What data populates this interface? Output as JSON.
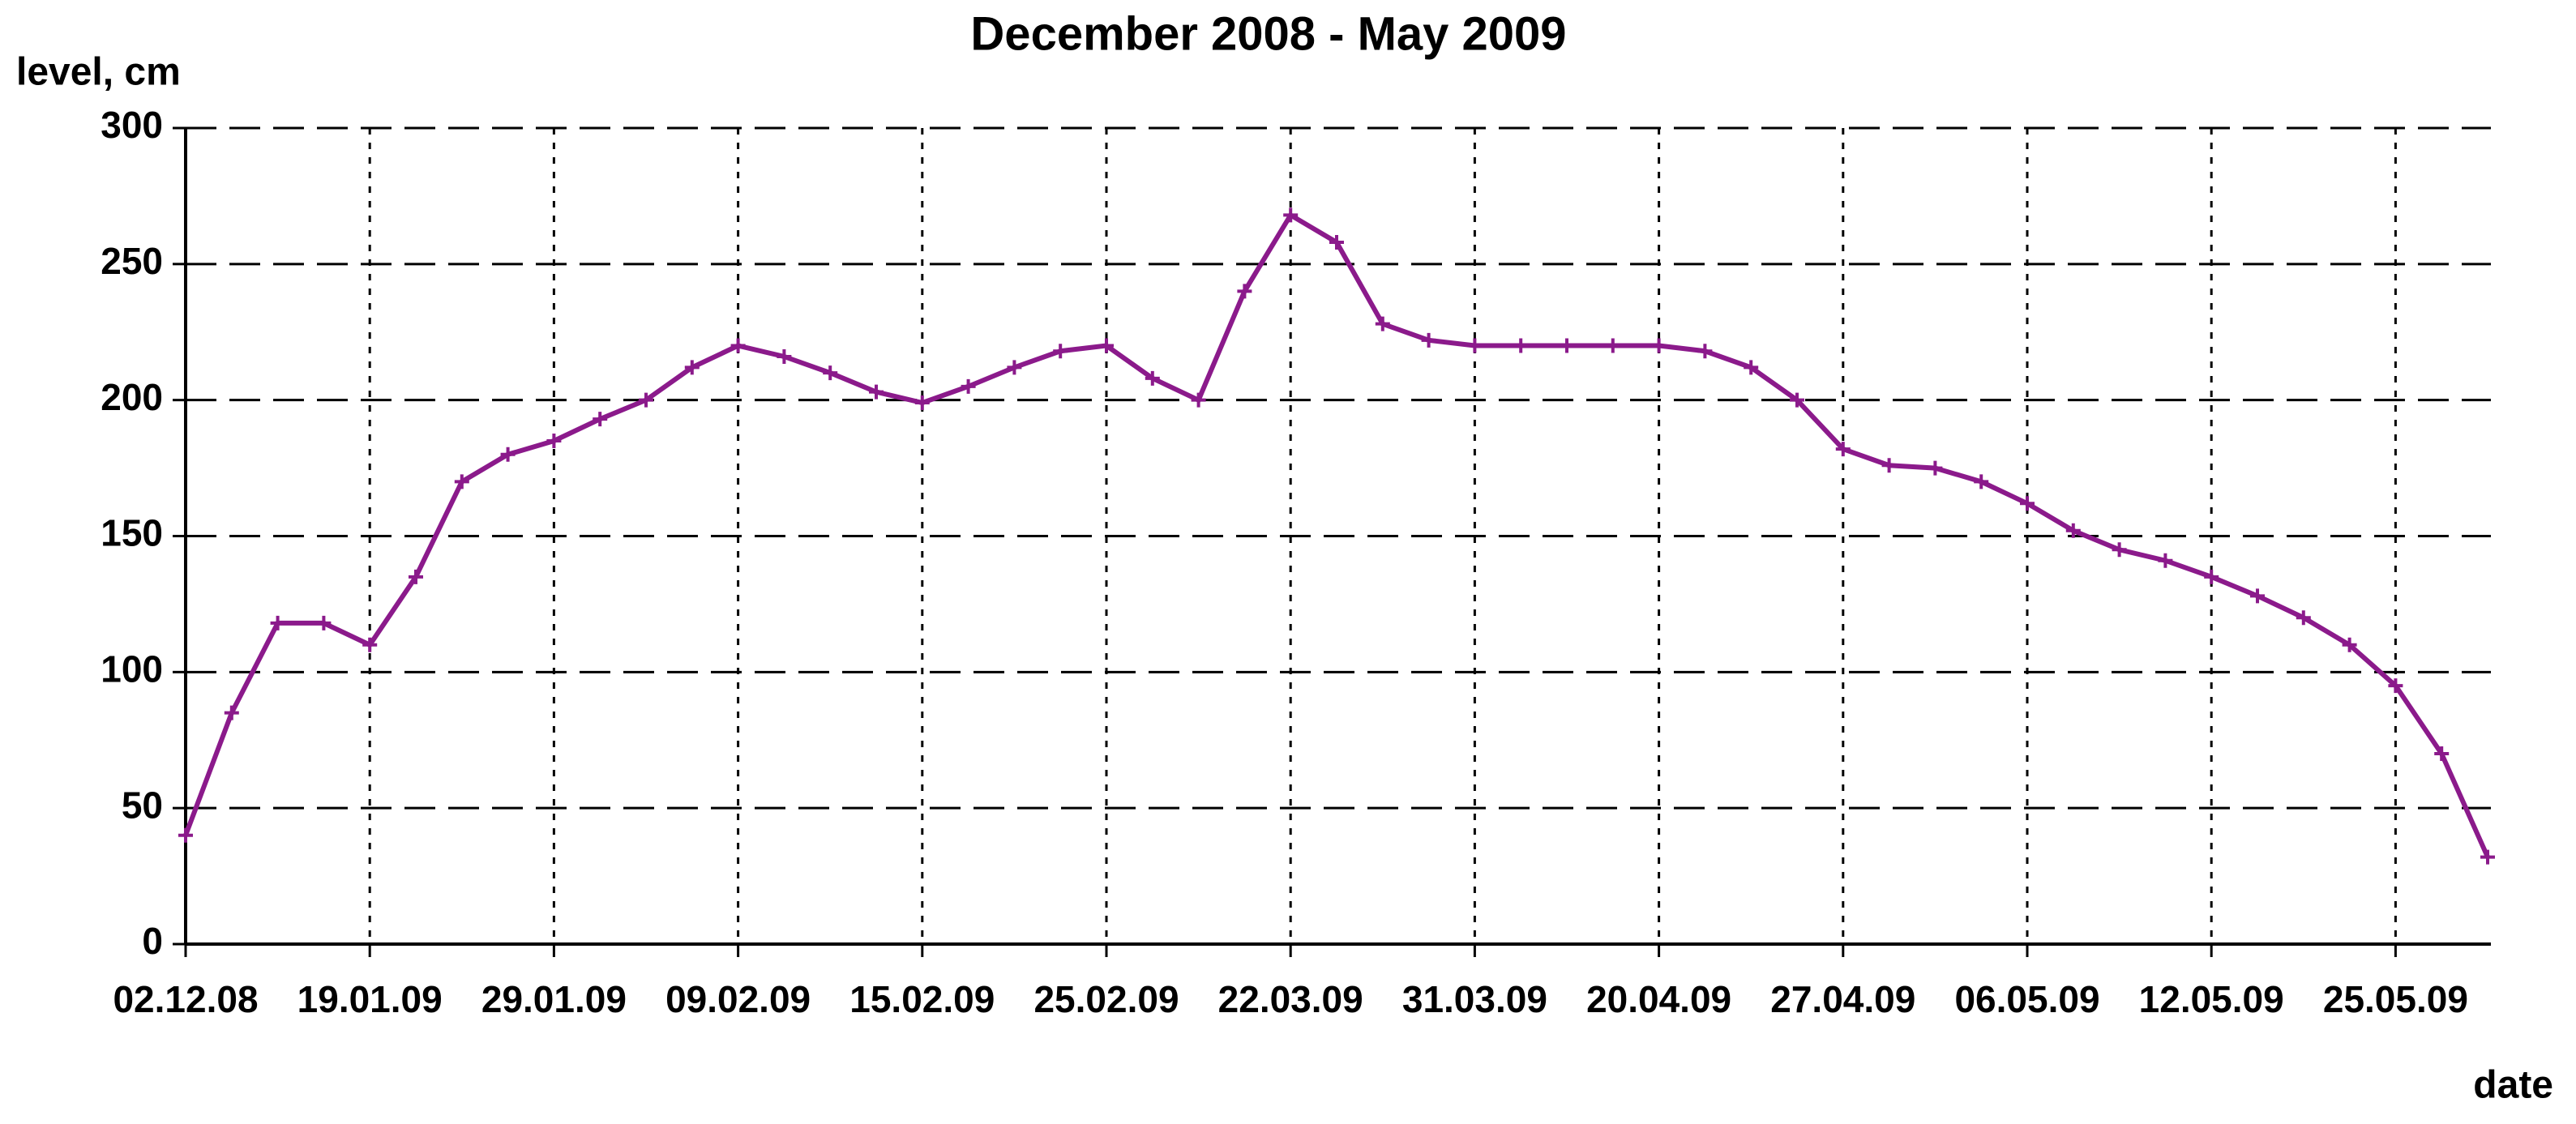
{
  "chart_data": {
    "type": "line",
    "title": "December 2008 - May 2009",
    "y_label": "level, cm",
    "x_label": "date",
    "categories": [
      "02.12.08",
      null,
      null,
      null,
      "19.01.09",
      null,
      null,
      null,
      "29.01.09",
      null,
      null,
      null,
      "09.02.09",
      null,
      null,
      null,
      "15.02.09",
      null,
      null,
      null,
      "25.02.09",
      null,
      null,
      null,
      "22.03.09",
      null,
      null,
      null,
      "31.03.09",
      null,
      null,
      null,
      "20.04.09",
      null,
      null,
      null,
      "27.04.09",
      null,
      null,
      null,
      "06.05.09",
      null,
      null,
      null,
      "12.05.09",
      null,
      null,
      null,
      "25.05.09",
      null,
      null
    ],
    "series": [
      {
        "name": "level",
        "color": "#8b1a8b",
        "values": [
          40,
          85,
          118,
          118,
          110,
          135,
          170,
          180,
          185,
          193,
          200,
          212,
          220,
          216,
          210,
          203,
          199,
          205,
          212,
          218,
          220,
          208,
          200,
          240,
          268,
          258,
          228,
          222,
          220,
          220,
          220,
          220,
          220,
          218,
          212,
          200,
          182,
          176,
          175,
          170,
          162,
          152,
          145,
          141,
          135,
          128,
          120,
          110,
          95,
          70,
          32
        ]
      }
    ],
    "ylim": [
      0,
      300
    ],
    "yticks": [
      0,
      50,
      100,
      150,
      200,
      250,
      300
    ],
    "grid": true
  }
}
